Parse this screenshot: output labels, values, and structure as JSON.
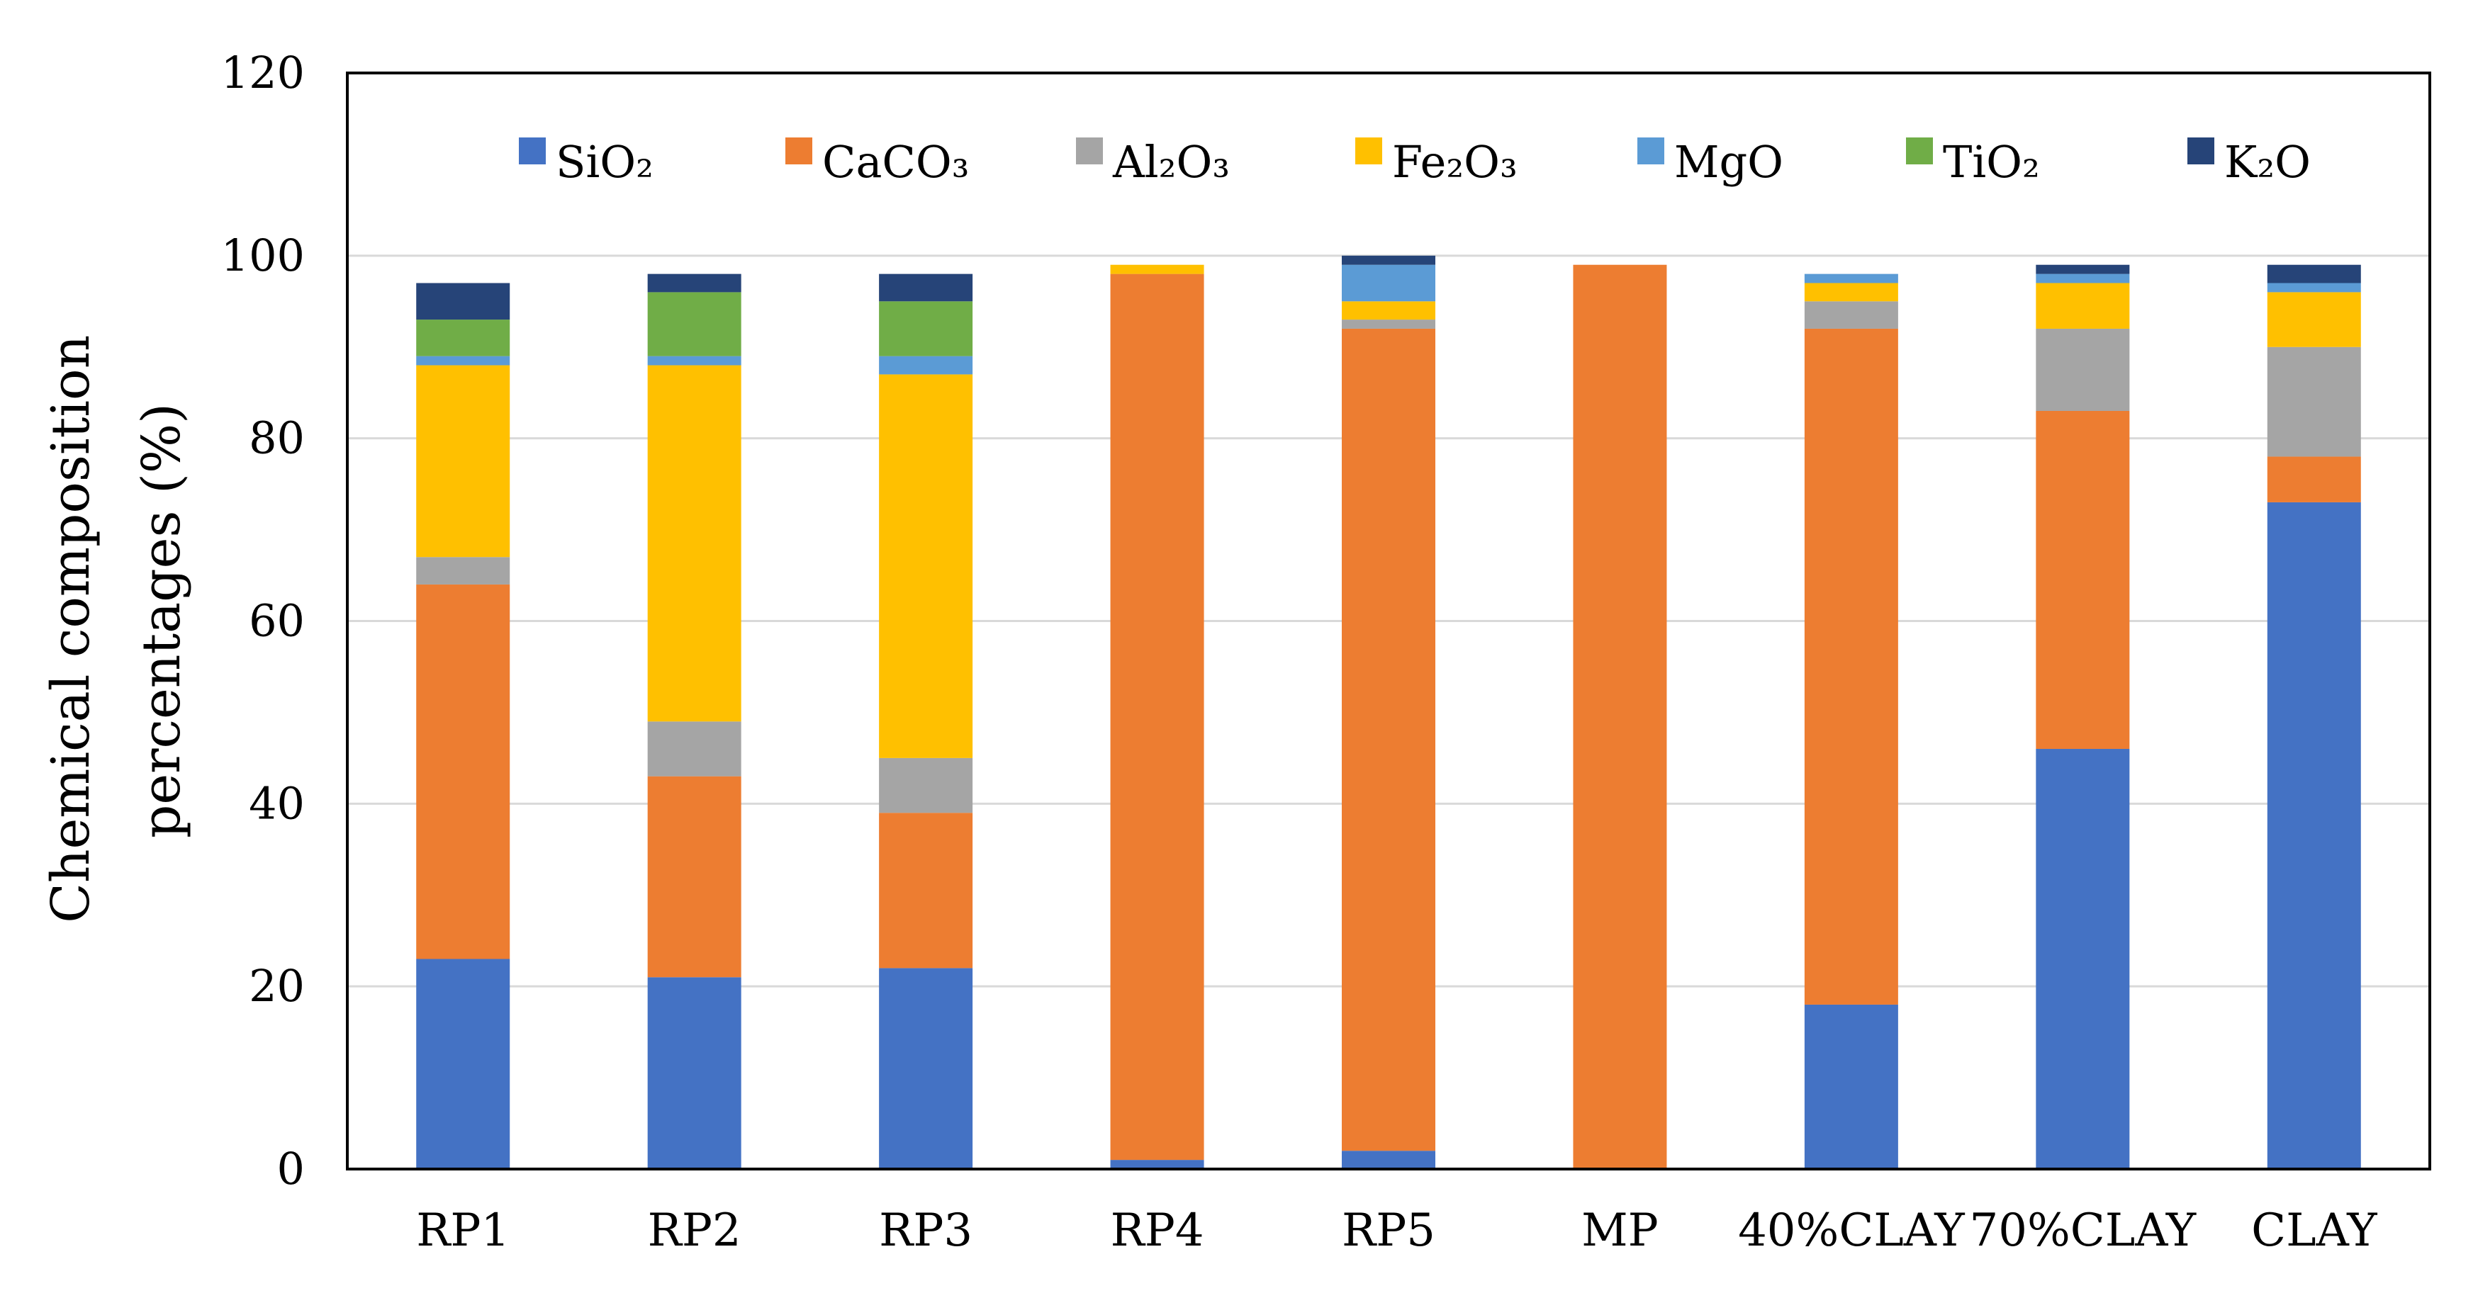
{
  "chart_data": {
    "type": "bar",
    "stacked": true,
    "title": "",
    "xlabel": "",
    "ylabel_lines": [
      "Chemical composition",
      "percentages (%)"
    ],
    "ylim": [
      0,
      120
    ],
    "yticks": [
      0,
      20,
      40,
      60,
      80,
      100,
      120
    ],
    "grid": true,
    "legend_position": "top",
    "categories": [
      "RP1",
      "RP2",
      "RP3",
      "RP4",
      "RP5",
      "MP",
      "40%CLAY",
      "70%CLAY",
      "CLAY"
    ],
    "series": [
      {
        "name": "SiO₂",
        "color": "#4472C4",
        "values": [
          23,
          21,
          22,
          1,
          2,
          0,
          18,
          46,
          73
        ]
      },
      {
        "name": "CaCO₃",
        "color": "#ED7D31",
        "values": [
          41,
          22,
          17,
          97,
          90,
          99,
          74,
          37,
          5
        ]
      },
      {
        "name": "Al₂O₃",
        "color": "#A5A5A5",
        "values": [
          3,
          6,
          6,
          0,
          1,
          0,
          3,
          9,
          12
        ]
      },
      {
        "name": "Fe₂O₃",
        "color": "#FFC000",
        "values": [
          21,
          39,
          42,
          1,
          2,
          0,
          2,
          5,
          6
        ]
      },
      {
        "name": "MgO",
        "color": "#5B9BD5",
        "values": [
          1,
          1,
          2,
          0,
          4,
          0,
          1,
          1,
          1
        ]
      },
      {
        "name": "TiO₂",
        "color": "#70AD47",
        "values": [
          4,
          7,
          6,
          0,
          0,
          0,
          0,
          0,
          0
        ]
      },
      {
        "name": "K₂O",
        "color": "#264478",
        "values": [
          4,
          2,
          3,
          0,
          1,
          0,
          0,
          1,
          2
        ]
      }
    ]
  }
}
